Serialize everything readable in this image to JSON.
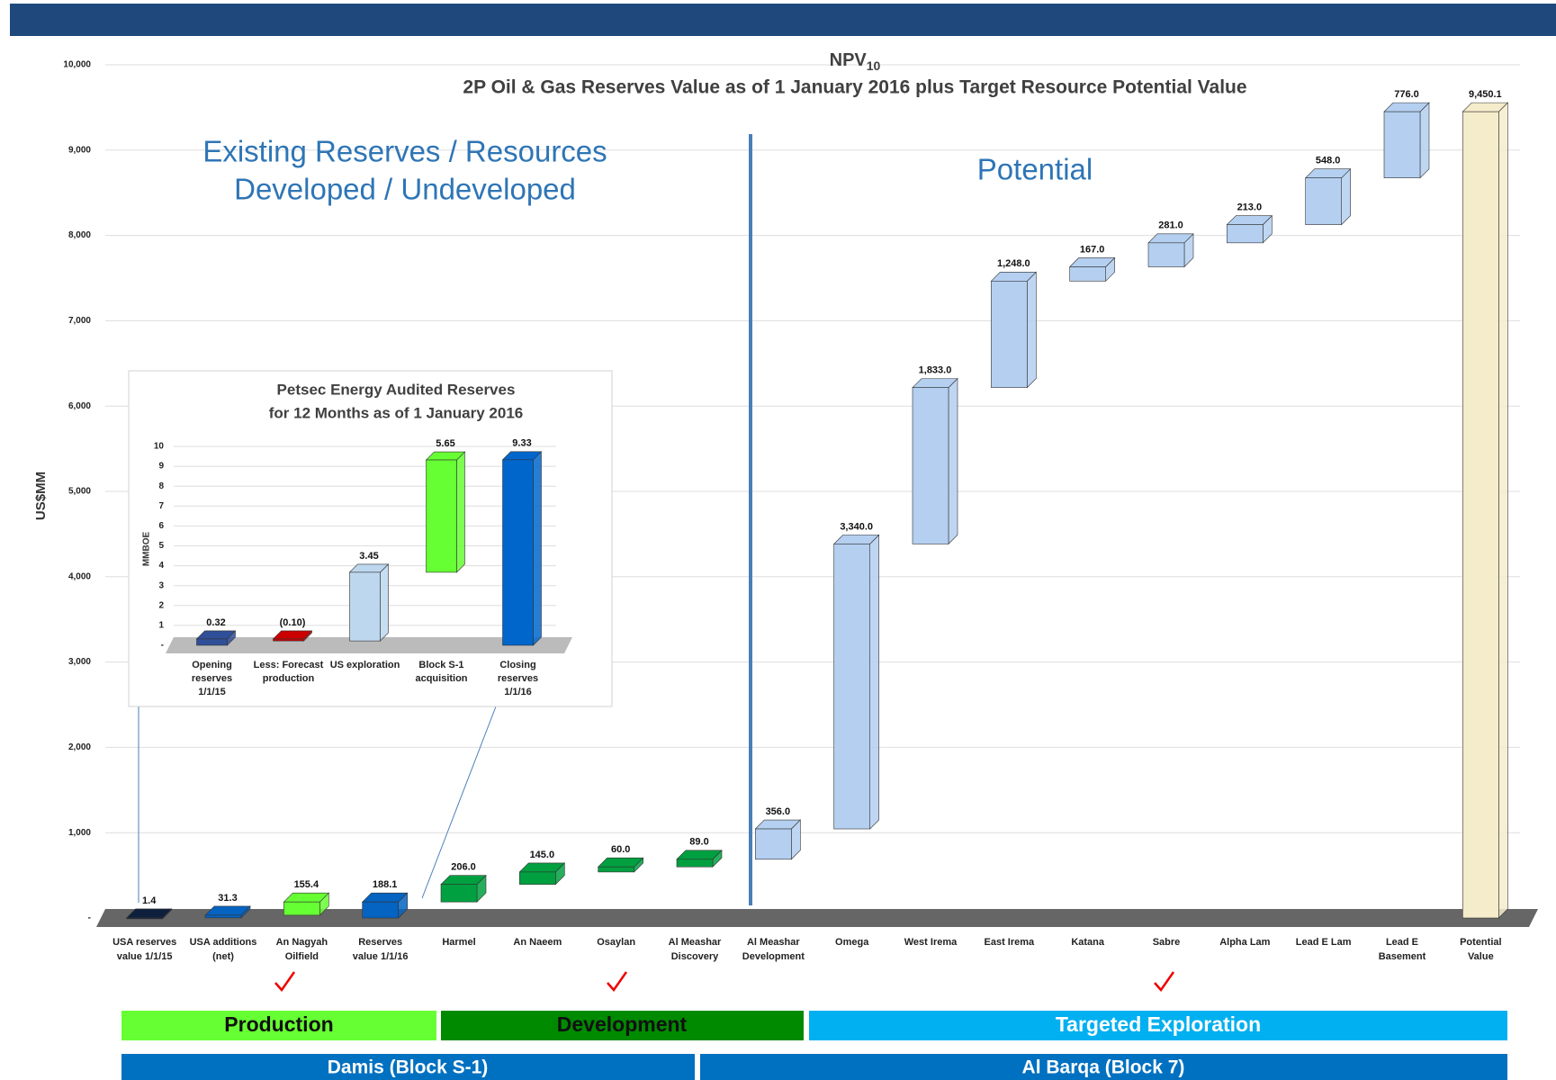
{
  "chart_data": [
    {
      "type": "waterfall",
      "title": "NPV",
      "title_subscript": "10",
      "subtitle": "2P Oil & Gas Reserves Value as of 1 January 2016 plus Target Resource Potential Value",
      "y_label": "US$MM",
      "annotations": [
        "Existing Reserves / Resources",
        "Developed / Undeveloped",
        "Potential"
      ],
      "categories": [
        [
          "USA reserves",
          "value 1/1/15"
        ],
        [
          "USA additions",
          "(net)"
        ],
        [
          "An Nagyah",
          "Oilfield"
        ],
        [
          "Reserves",
          "value 1/1/16"
        ],
        [
          "Harmel"
        ],
        [
          "An Naeem"
        ],
        [
          "Osaylan"
        ],
        [
          "Al Meashar",
          "Discovery"
        ],
        [
          "Al Meashar",
          "Development"
        ],
        [
          "Omega"
        ],
        [
          "West Irema"
        ],
        [
          "East Irema"
        ],
        [
          "Katana"
        ],
        [
          "Sabre"
        ],
        [
          "Alpha Lam"
        ],
        [
          "Lead E Lam"
        ],
        [
          "Lead E",
          "Basement"
        ],
        [
          "Potential",
          "Value"
        ]
      ],
      "values": [
        1.4,
        31.3,
        155.4,
        188.1,
        206.0,
        145.0,
        60.0,
        89.0,
        356.0,
        3340.0,
        1833.0,
        1248.0,
        167.0,
        281.0,
        213.0,
        548.0,
        776.0,
        9450.1
      ],
      "value_labels": [
        "1.4",
        "31.3",
        "155.4",
        "188.1",
        "206.0",
        "145.0",
        "60.0",
        "89.0",
        "356.0",
        "3,340.0",
        "1,833.0",
        "1,248.0",
        "167.0",
        "281.0",
        "213.0",
        "548.0",
        "776.0",
        "9,450.1"
      ],
      "totals": [
        false,
        false,
        false,
        true,
        false,
        false,
        false,
        false,
        false,
        false,
        false,
        false,
        false,
        false,
        false,
        false,
        false,
        true
      ],
      "colors": [
        "#0d1f3c",
        "#0563c1",
        "#66ff33",
        "#0563c1",
        "#00a040",
        "#00a040",
        "#00a040",
        "#00a040",
        "#b4cff0",
        "#b4cff0",
        "#b4cff0",
        "#b4cff0",
        "#b4cff0",
        "#b4cff0",
        "#b4cff0",
        "#b4cff0",
        "#b4cff0",
        "#f5eccb"
      ],
      "ylim": [
        0,
        10000
      ],
      "yticks": [
        {
          "value": 0,
          "label": "-"
        },
        {
          "value": 1000,
          "label": "1,000"
        },
        {
          "value": 2000,
          "label": "2,000"
        },
        {
          "value": 3000,
          "label": "3,000"
        },
        {
          "value": 4000,
          "label": "4,000"
        },
        {
          "value": 5000,
          "label": "5,000"
        },
        {
          "value": 6000,
          "label": "6,000"
        },
        {
          "value": 7000,
          "label": "7,000"
        },
        {
          "value": 8000,
          "label": "8,000"
        },
        {
          "value": 9000,
          "label": "9,000"
        },
        {
          "value": 10000,
          "label": "10,000"
        }
      ],
      "grid": true
    },
    {
      "type": "waterfall",
      "title_lines": [
        "Petsec Energy Audited Reserves",
        "for 12 Months as of 1 January 2016"
      ],
      "y_label": "MMBOE",
      "categories": [
        [
          "Opening",
          "reserves",
          "1/1/15"
        ],
        [
          "Less: Forecast",
          "production"
        ],
        [
          "US exploration"
        ],
        [
          "Block S-1",
          "acquisition"
        ],
        [
          "Closing",
          "reserves",
          "1/1/16"
        ]
      ],
      "values": [
        0.32,
        -0.1,
        3.45,
        5.65,
        9.33
      ],
      "value_labels": [
        "0.32",
        "(0.10)",
        "3.45",
        "5.65",
        "9.33"
      ],
      "totals": [
        false,
        false,
        false,
        false,
        true
      ],
      "colors": [
        "#2f4f99",
        "#cc0000",
        "#bdd7ee",
        "#66ff33",
        "#0066cc"
      ],
      "ylim": [
        0,
        10
      ],
      "yticks": [
        {
          "value": 0,
          "label": "-"
        },
        1,
        2,
        3,
        4,
        5,
        6,
        7,
        8,
        9,
        10
      ],
      "grid": true
    }
  ],
  "phases": [
    "Production",
    "Development",
    "Targeted Exploration"
  ],
  "blocks": [
    "Damis (Block S-1)",
    "Al Barqa (Block 7)"
  ]
}
